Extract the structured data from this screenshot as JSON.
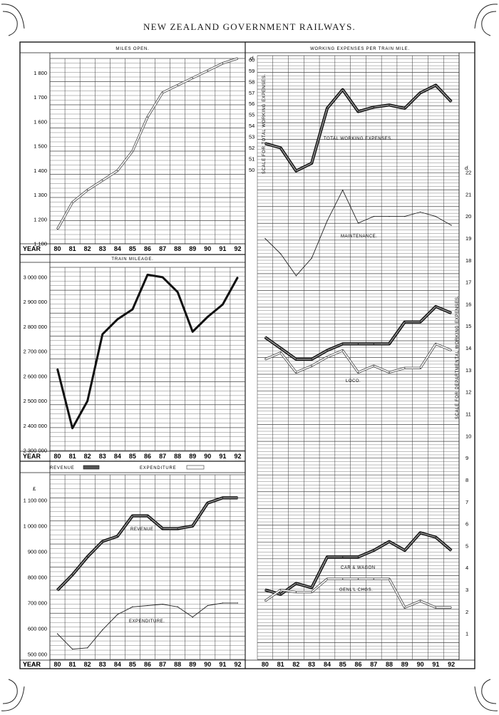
{
  "title": "NEW ZEALAND GOVERNMENT RAILWAYS.",
  "years": [
    "80",
    "81",
    "82",
    "83",
    "84",
    "85",
    "86",
    "87",
    "88",
    "89",
    "90",
    "91",
    "92"
  ],
  "year_label": "YEAR",
  "chart_data": [
    {
      "type": "line",
      "title": "MILES OPEN.",
      "x": [
        "80",
        "81",
        "82",
        "83",
        "84",
        "85",
        "86",
        "87",
        "88",
        "89",
        "90",
        "91",
        "92"
      ],
      "ylim": [
        1100,
        1860
      ],
      "yticks": [
        "1 100",
        "1 200",
        "1 300",
        "1 400",
        "1 500",
        "1 600",
        "1 700",
        "1 800"
      ],
      "series": [
        {
          "values": [
            1160,
            1270,
            1320,
            1360,
            1400,
            1480,
            1620,
            1720,
            1750,
            1780,
            1810,
            1840,
            1860
          ]
        }
      ]
    },
    {
      "type": "line",
      "title": "TRAIN MILEAGE.",
      "x": [
        "80",
        "81",
        "82",
        "83",
        "84",
        "85",
        "86",
        "87",
        "88",
        "89",
        "90",
        "91",
        "92"
      ],
      "ylim": [
        2300000,
        3040000
      ],
      "yticks": [
        "2 300 000",
        "2 400 000",
        "2 500 000",
        "2 600 000",
        "2 700 000",
        "2 800 000",
        "2 900 000",
        "3 000 000"
      ],
      "series": [
        {
          "values": [
            2630000,
            2390000,
            2500000,
            2770000,
            2830000,
            2870000,
            3010000,
            3000000,
            2940000,
            2780000,
            2840000,
            2890000,
            3000000
          ]
        }
      ]
    },
    {
      "type": "line",
      "legend": [
        "REVENUE",
        "EXPENDITURE"
      ],
      "currency": "£",
      "x": [
        "80",
        "81",
        "82",
        "83",
        "84",
        "85",
        "86",
        "87",
        "88",
        "89",
        "90",
        "91",
        "92"
      ],
      "ylim": [
        480000,
        1200000
      ],
      "yticks": [
        "500 000",
        "600 000",
        "700 000",
        "800 000",
        "900 000",
        "1 000 000",
        "1 100 000"
      ],
      "series": [
        {
          "name": "REVENUE",
          "values": [
            750000,
            810000,
            880000,
            940000,
            960000,
            1040000,
            1040000,
            990000,
            990000,
            1000000,
            1090000,
            1110000,
            1110000
          ]
        },
        {
          "name": "EXPENDITURE",
          "values": [
            580000,
            520000,
            525000,
            595000,
            655000,
            685000,
            690000,
            695000,
            685000,
            645000,
            690000,
            700000,
            700000
          ]
        }
      ]
    },
    {
      "type": "line",
      "title": "WORKING EXPENSES PER TRAIN MILE.",
      "unit": "d.",
      "x": [
        "80",
        "81",
        "82",
        "83",
        "84",
        "85",
        "86",
        "87",
        "88",
        "89",
        "90",
        "91",
        "92"
      ],
      "left_axis_label": "SCALE FOR TOTAL WORKING EXPENSES.",
      "left_ylim": [
        49.5,
        60
      ],
      "left_yticks": [
        "50",
        "51",
        "52",
        "53",
        "54",
        "55",
        "56",
        "57",
        "58",
        "59",
        "60"
      ],
      "right_axis_label": "SCALE FOR DEPARTMENTAL WORKING EXPENSES.",
      "right_ylim": [
        0,
        22
      ],
      "right_yticks": [
        "1",
        "2",
        "3",
        "4",
        "5",
        "6",
        "7",
        "8",
        "9",
        "10",
        "11",
        "12",
        "13",
        "14",
        "15",
        "16",
        "17",
        "18",
        "19",
        "20",
        "21",
        "22"
      ],
      "series": [
        {
          "name": "TOTAL WORKING EXPENSES.",
          "axis": "left",
          "values": [
            52.4,
            52.0,
            49.9,
            50.6,
            55.6,
            57.3,
            55.3,
            55.7,
            55.9,
            55.6,
            57.0,
            57.7,
            56.2
          ]
        },
        {
          "name": "MAINTENANCE.",
          "axis": "right",
          "values": [
            19.0,
            18.3,
            17.3,
            18.1,
            19.8,
            21.2,
            19.7,
            20.0,
            20.0,
            20.0,
            20.2,
            20.0,
            19.6
          ]
        },
        {
          "name": "LOCO.",
          "axis": "right",
          "values": [
            14.5,
            14.0,
            13.5,
            13.5,
            13.9,
            14.2,
            14.2,
            14.2,
            14.2,
            15.2,
            15.2,
            15.9,
            15.6
          ]
        },
        {
          "name": "LOCO. (lower)",
          "axis": "right",
          "values": [
            13.5,
            13.8,
            12.9,
            13.2,
            13.6,
            13.9,
            12.9,
            13.2,
            12.9,
            13.1,
            13.1,
            14.2,
            13.9
          ]
        },
        {
          "name": "CAR & WAGON",
          "axis": "right",
          "values": [
            3.0,
            2.8,
            3.3,
            3.1,
            4.5,
            4.5,
            4.5,
            4.8,
            5.2,
            4.8,
            5.6,
            5.4,
            4.8
          ]
        },
        {
          "name": "GENL'L CHGS.",
          "axis": "right",
          "values": [
            2.5,
            3.0,
            2.9,
            2.9,
            3.5,
            3.5,
            3.5,
            3.5,
            3.5,
            2.2,
            2.5,
            2.2,
            2.2
          ]
        }
      ]
    }
  ],
  "labels": {
    "miles_open": "MILES OPEN.",
    "train_mileage": "TRAIN MILEAGE.",
    "revenue": "REVENUE",
    "expenditure": "EXPENDITURE",
    "revenue_line": "REVENUE",
    "expenditure_line": "EXPENDITURE.",
    "pound": "£",
    "wepm": "WORKING EXPENSES PER TRAIN MILE.",
    "d_left": "d.",
    "d_right": "d.",
    "total_we": "TOTAL WORKING EXPENSES.",
    "maintenance": "MAINTENANCE.",
    "loco": "LOCO.",
    "car_wagon": "CAR & WAGON",
    "genl": "GENL'L CHGS.",
    "left_axis": "SCALE FOR TOTAL WORKING EXPENSES.",
    "right_axis": "SCALE FOR DEPARTMENTAL WORKING EXPENSES."
  }
}
